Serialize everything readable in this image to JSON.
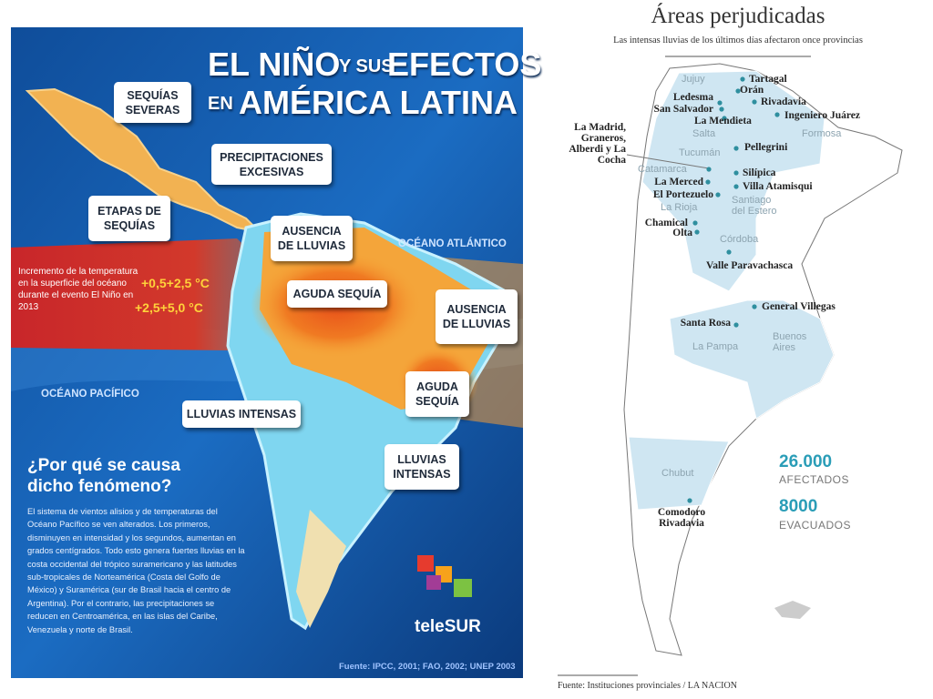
{
  "left": {
    "title": {
      "line1a": "EL NIÑO",
      "line1b": "Y SUS",
      "line1c": "EFECTOS",
      "line2a": "EN",
      "line2b": "AMÉRICA LATINA"
    },
    "callouts": [
      "SEQUÍAS SEVERAS",
      "PRECIPITACIONES EXCESIVAS",
      "ETAPAS DE SEQUÍAS",
      "AUSENCIA DE LLUVIAS",
      "AGUDA SEQUÍA",
      "AUSENCIA DE LLUVIAS",
      "AGUDA SEQUÍA",
      "LLUVIAS INTENSAS",
      "LLUVIAS INTENSAS"
    ],
    "oceans": [
      "OCÉANO ATLÁNTICO",
      "OCÉANO PACÍFICO"
    ],
    "legend": {
      "text": "Incremento de la temperatura en la superficie del océano durante el evento El Niño en 2013",
      "range1": "+0,5+2,5 °C",
      "range2": "+2,5+5,0 °C"
    },
    "question": "¿Por qué se causa dicho fenómeno?",
    "body": "El sistema de vientos alisios y de temperaturas del Océano Pacífico se ven alterados. Los primeros, disminuyen en intensidad y los segundos, aumentan en grados centígrados. Todo esto genera fuertes lluvias en la costa occidental del trópico suramericano y las latitudes sub-tropicales de Norteamérica (Costa del Golfo de México) y Suramérica (sur de Brasil hacia el centro de Argentina). Por el contrario, las precipitaciones se reducen en Centroamérica, en las islas del Caribe, Venezuela y norte de Brasil.",
    "logo": "teleSUR",
    "source": "Fuente: IPCC, 2001; FAO, 2002; UNEP 2003"
  },
  "right": {
    "title": "Áreas perjudicadas",
    "subtitle": "Las intensas lluvias de los últimos días afectaron once provincias",
    "places": [
      "Tartagal",
      "Orán",
      "Rivadavia",
      "Ingeniero Juárez",
      "Ledesma",
      "San Salvador",
      "La Mendieta",
      "Pellegrini",
      "La Madrid, Graneros, Alberdi y La Cocha",
      "Silípica",
      "La Merced",
      "Villa Atamisqui",
      "El Portezuelo",
      "Chamical",
      "Olta",
      "Valle Paravachasca",
      "General Villegas",
      "Santa Rosa",
      "Comodoro Rivadavia"
    ],
    "provinces": [
      "Jujuy",
      "Salta",
      "Formosa",
      "Tucumán",
      "Catamarca",
      "Santiago del Estero",
      "La Rioja",
      "Córdoba",
      "Buenos Aires",
      "La Pampa",
      "Chubut"
    ],
    "stats": [
      {
        "value": "26.000",
        "label": "AFECTADOS"
      },
      {
        "value": "8000",
        "label": "EVACUADOS"
      }
    ],
    "source": "Fuente: Instituciones provinciales / LA NACION"
  }
}
